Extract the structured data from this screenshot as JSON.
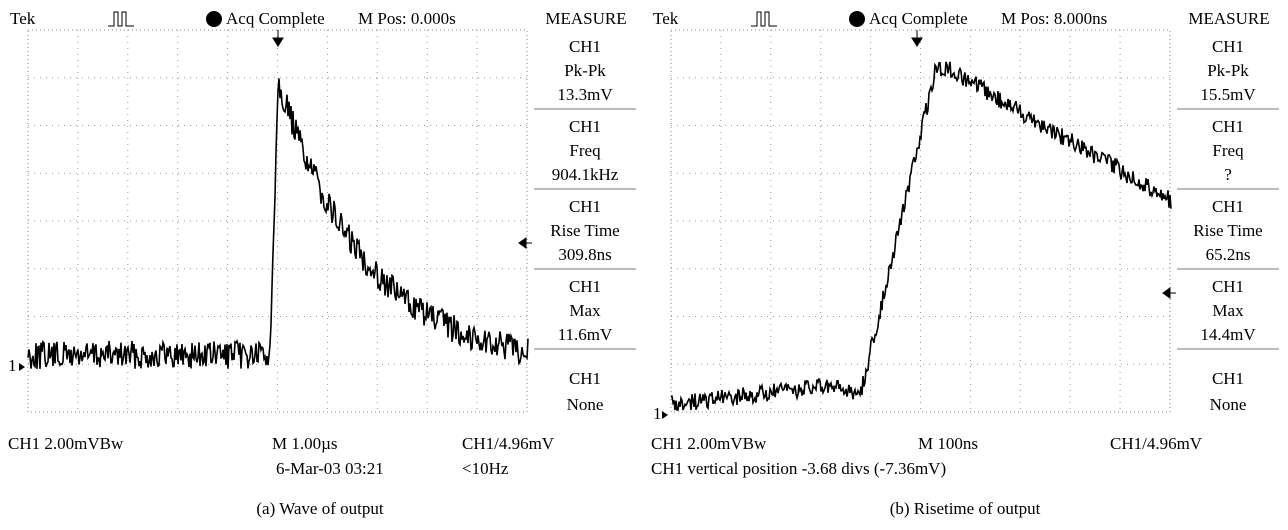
{
  "panels": [
    {
      "header": {
        "brand": "Tek",
        "status": "Acq Complete",
        "position": "M Pos: 0.000s",
        "menu_title": "MEASURE"
      },
      "channel_marker": "1",
      "measurements": [
        {
          "source": "CH1",
          "name": "Pk-Pk",
          "value": "13.3mV"
        },
        {
          "source": "CH1",
          "name": "Freq",
          "value": "904.1kHz"
        },
        {
          "source": "CH1",
          "name": "Rise Time",
          "value": "309.8ns"
        },
        {
          "source": "CH1",
          "name": "Max",
          "value": "11.6mV"
        },
        {
          "source": "CH1",
          "name": "None"
        }
      ],
      "footer": {
        "scale": "CH1 2.00mVBw",
        "timebase": "M 1.00µs",
        "trigger": "CH1/4.96mV",
        "date": "6-Mar-03 03:21",
        "trigger_freq": "<10Hz"
      },
      "caption": "(a) Wave of output"
    },
    {
      "header": {
        "brand": "Tek",
        "status": "Acq Complete",
        "position": "M Pos: 8.000ns",
        "menu_title": "MEASURE"
      },
      "channel_marker": "1",
      "measurements": [
        {
          "source": "CH1",
          "name": "Pk-Pk",
          "value": "15.5mV"
        },
        {
          "source": "CH1",
          "name": "Freq",
          "value": "?"
        },
        {
          "source": "CH1",
          "name": "Rise Time",
          "value": "65.2ns"
        },
        {
          "source": "CH1",
          "name": "Max",
          "value": "14.4mV"
        },
        {
          "source": "CH1",
          "name": "None"
        }
      ],
      "footer": {
        "scale": "CH1 2.00mVBw",
        "timebase": "M 100ns",
        "trigger": "CH1/4.96mV",
        "note": "CH1 vertical position -3.68 divs (-7.36mV)"
      },
      "caption": "(b) Risetime of output"
    }
  ]
}
